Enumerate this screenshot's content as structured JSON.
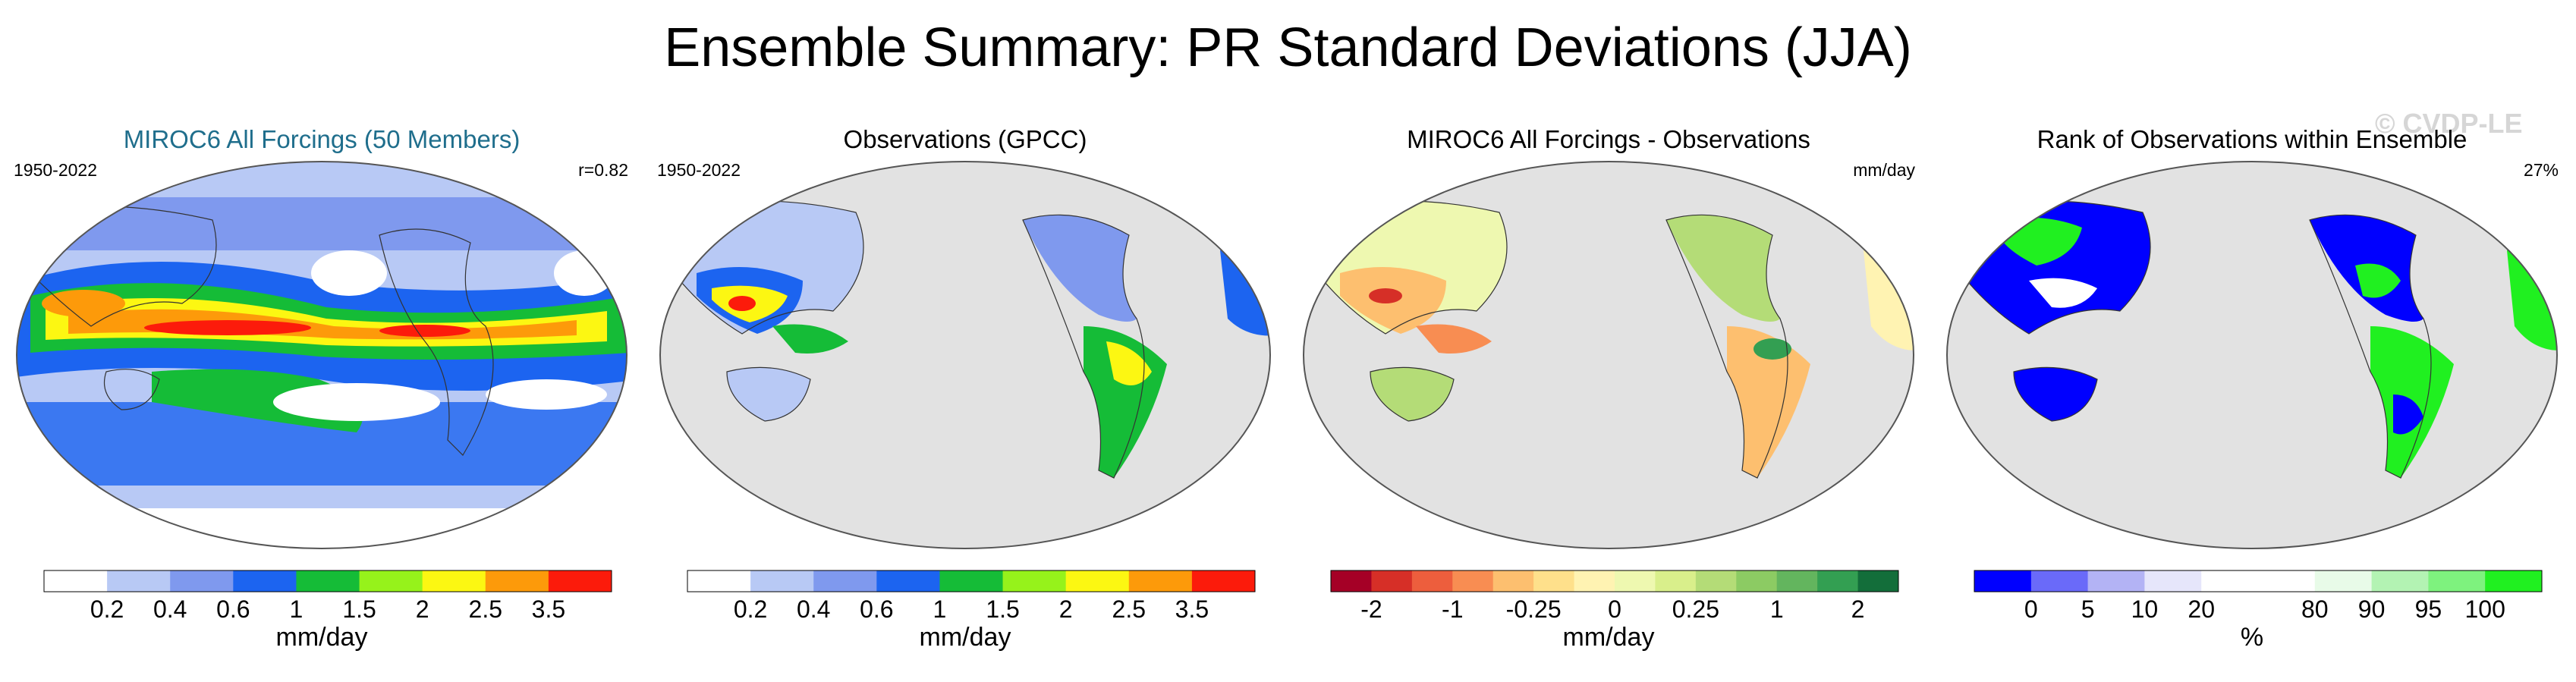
{
  "title": "Ensemble Summary: PR Standard Deviations (JJA)",
  "watermark": "© CVDP-LE",
  "panels": [
    {
      "title": "MIROC6 All Forcings (50 Members)",
      "left_text": "1950-2022",
      "right_text": "r=0.82",
      "colorbar": {
        "colors": [
          "#ffffff",
          "#b8c9f5",
          "#7f99ee",
          "#1c64f0",
          "#15bc37",
          "#96f21b",
          "#fcf712",
          "#fd9a0a",
          "#fc1b0b"
        ],
        "tick_labels": [
          "0.2",
          "0.4",
          "0.6",
          "1",
          "1.5",
          "2",
          "2.5",
          "3.5"
        ],
        "label": "mm/day"
      }
    },
    {
      "title": "Observations (GPCC)",
      "left_text": "1950-2022",
      "right_text": "",
      "colorbar": {
        "colors": [
          "#ffffff",
          "#b8c9f5",
          "#7f99ee",
          "#1c64f0",
          "#15bc37",
          "#96f21b",
          "#fcf712",
          "#fd9a0a",
          "#fc1b0b"
        ],
        "tick_labels": [
          "0.2",
          "0.4",
          "0.6",
          "1",
          "1.5",
          "2",
          "2.5",
          "3.5"
        ],
        "label": "mm/day"
      }
    },
    {
      "title": "MIROC6 All Forcings - Observations",
      "left_text": "",
      "right_text": "mm/day",
      "colorbar": {
        "colors": [
          "#a50026",
          "#d62f27",
          "#ed5e3d",
          "#f88d52",
          "#fdbf6f",
          "#fee08b",
          "#fff3b2",
          "#eef8b0",
          "#d9ef8b",
          "#b4dc77",
          "#8ccb63",
          "#63b55e",
          "#339f52",
          "#136e3a"
        ],
        "tick_labels": [
          "-2",
          "-1",
          "-0.25",
          "0",
          "0.25",
          "1",
          "2"
        ],
        "label": "mm/day"
      }
    },
    {
      "title": "Rank of Observations within Ensemble",
      "left_text": "",
      "right_text": "27%",
      "colorbar": {
        "colors": [
          "#0000ff",
          "#6a6af9",
          "#b3b3f5",
          "#e6e6fb",
          "#ffffff",
          "#ffffff",
          "#e8fbe8",
          "#b3f3b3",
          "#7ef27e",
          "#20f020"
        ],
        "tick_labels": [
          "0",
          "5",
          "10",
          "20",
          "80",
          "90",
          "95",
          "100"
        ],
        "label": "%"
      }
    }
  ]
}
